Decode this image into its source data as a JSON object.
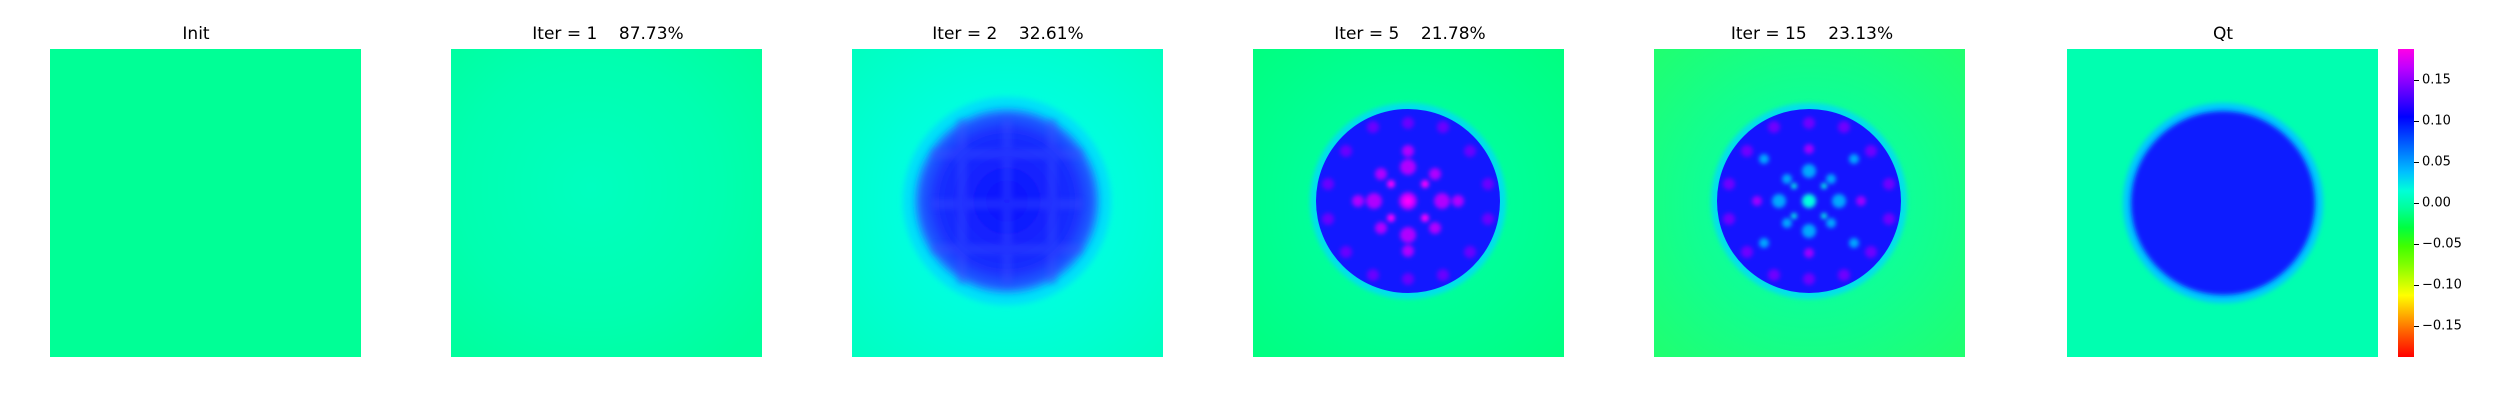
{
  "panels": [
    {
      "title": "Init",
      "style": "flat"
    },
    {
      "title": "Iter = 1    87.73%",
      "style": "faint"
    },
    {
      "title": "Iter = 2    32.61%",
      "style": "blurry-disk"
    },
    {
      "title": "Iter = 5    21.78%",
      "style": "ringing-disk"
    },
    {
      "title": "Iter = 15    23.13%",
      "style": "ringing-disk-strong"
    },
    {
      "title": "Qt",
      "style": "clean-disk"
    }
  ],
  "colorbar": {
    "ticks": [
      "0.15",
      "0.10",
      "0.05",
      "0.00",
      "−0.05",
      "−0.10",
      "−0.15"
    ],
    "colormap": "hsv",
    "range": [
      -0.19,
      0.19
    ]
  },
  "colors": {
    "background_flat": "#00ff96",
    "background_light": "#00ffc8",
    "disk_blue": "#0a1eff",
    "ring_cyan": "#00e6ff",
    "peak_magenta": "#d000ff"
  }
}
